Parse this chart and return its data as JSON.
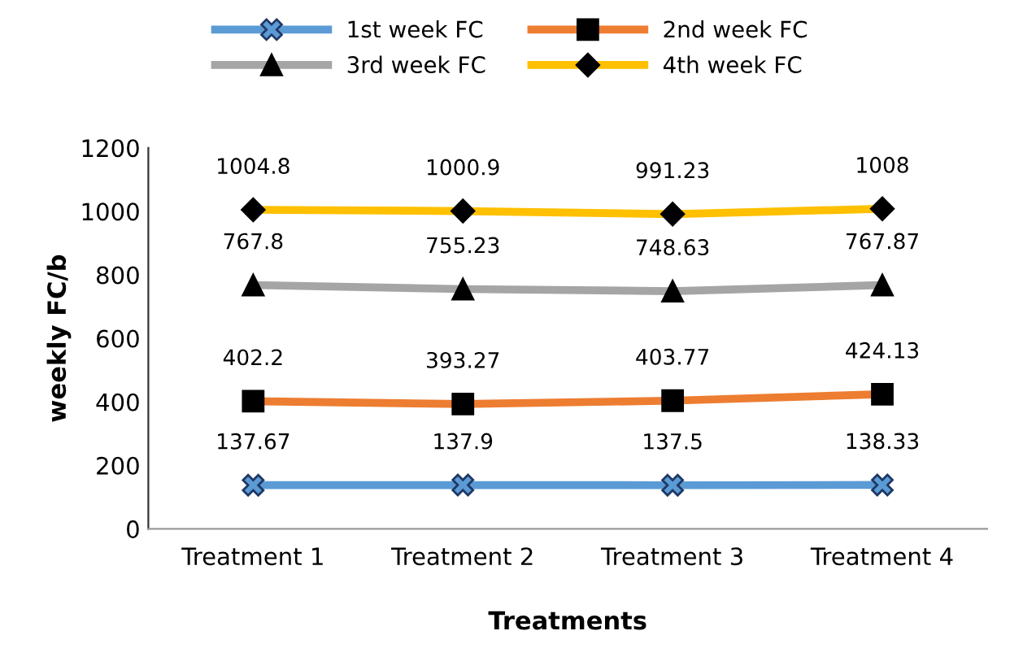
{
  "chart_data": {
    "type": "line",
    "xlabel": "Treatments",
    "ylabel": "weekly FC/b",
    "categories": [
      "Treatment 1",
      "Treatment 2",
      "Treatment 3",
      "Treatment 4"
    ],
    "series": [
      {
        "name": "1st week FC",
        "color": "#5b9bd5",
        "marker": "cross",
        "values": [
          137.67,
          137.9,
          137.5,
          138.33
        ]
      },
      {
        "name": "2nd week FC",
        "color": "#ed7d31",
        "marker": "square",
        "values": [
          402.2,
          393.27,
          403.77,
          424.13
        ]
      },
      {
        "name": "3rd week FC",
        "color": "#a5a5a5",
        "marker": "triangle",
        "values": [
          767.8,
          755.23,
          748.63,
          767.87
        ]
      },
      {
        "name": "4th week FC",
        "color": "#ffc000",
        "marker": "diamond",
        "values": [
          1004.8,
          1000.9,
          991.23,
          1008
        ]
      }
    ],
    "ylim": [
      0,
      1200
    ],
    "yticks": [
      0,
      200,
      400,
      600,
      800,
      1000,
      1200
    ],
    "data_labels": true,
    "legend": "top",
    "grid": false,
    "line_style": "solid"
  }
}
